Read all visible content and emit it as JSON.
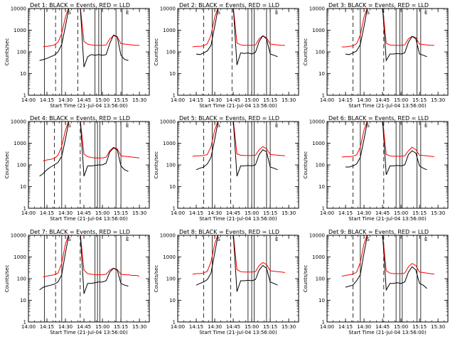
{
  "chart_data": {
    "type": "line",
    "x_tick_labels": [
      "14:00",
      "14:15",
      "14:30",
      "14:45",
      "15:00",
      "15:15",
      "15:30"
    ],
    "x_range": [
      "14:00",
      "15:38"
    ],
    "ylabel": "Counts/sec",
    "y_scale": "log",
    "ylim": [
      1,
      10000
    ],
    "y_tick_labels": [
      "1",
      "10",
      "100",
      "1000",
      "10000"
    ],
    "xlabel": "Start Time (21-Jul-04 13:56:00)",
    "markers": [
      "S",
      "E"
    ],
    "grid": false,
    "colors": {
      "events": "#000000",
      "lld": "#ff0000",
      "axes": "#000000"
    },
    "time_axis": [
      "14:09",
      "14:12",
      "14:15",
      "14:18",
      "14:21",
      "14:24",
      "14:27",
      "14:30",
      "14:33",
      "14:36",
      "14:39",
      "14:42",
      "14:45",
      "14:48",
      "14:51",
      "14:54",
      "14:57",
      "15:00",
      "15:03",
      "15:06",
      "15:09",
      "15:12",
      "15:15",
      "15:18",
      "15:21",
      "15:24",
      "15:27",
      "15:30",
      "15:33"
    ],
    "panels": [
      {
        "title": "Det 1: BLACK = Events, RED = LLD",
        "vlines_solid": [
          "14:13",
          "14:27",
          "14:54",
          "14:57",
          "14:59",
          "15:11",
          "15:16"
        ],
        "vlines_dashed": [
          "14:22",
          "14:40"
        ],
        "series": [
          {
            "name": "Events",
            "values": [
              null,
              null,
              null,
              null,
              null,
              null,
              null,
              null,
              null,
              null,
              null,
              null,
              null,
              null,
              null,
              null,
              null,
              null,
              null,
              null,
              null,
              null,
              null,
              null,
              null,
              null,
              null,
              null,
              null
            ]
          },
          {
            "name": "LLD",
            "values": [
              null,
              null,
              null,
              null,
              null,
              null,
              null,
              null,
              null,
              null,
              null,
              null,
              null,
              null,
              null,
              null,
              null,
              null,
              null,
              null,
              null,
              null,
              null,
              null,
              null,
              null,
              null,
              null,
              null
            ]
          }
        ],
        "events_values": [
          40,
          44,
          50,
          60,
          70,
          100,
          220,
          1500,
          12000,
          12000,
          12000,
          12000,
          20,
          60,
          75,
          70,
          75,
          70,
          75,
          250,
          600,
          500,
          70,
          45,
          40,
          null,
          null,
          null,
          null
        ],
        "lld_values": [
          null,
          175,
          180,
          190,
          210,
          280,
          700,
          4000,
          12000,
          12000,
          12000,
          12000,
          300,
          230,
          210,
          200,
          200,
          200,
          210,
          400,
          550,
          500,
          240,
          230,
          220,
          210,
          200,
          200,
          null
        ]
      },
      {
        "title": "Det 2: BLACK = Events, RED = LLD",
        "vlines_solid": [
          "14:28",
          "14:57",
          "15:00",
          "15:02",
          "15:12",
          "15:15"
        ],
        "vlines_dashed": [
          "14:21",
          "14:44"
        ],
        "events_values": [
          null,
          null,
          80,
          75,
          90,
          110,
          200,
          1500,
          12000,
          12000,
          12000,
          12000,
          12000,
          25,
          90,
          85,
          90,
          80,
          95,
          300,
          550,
          400,
          80,
          70,
          60,
          null,
          null,
          null,
          null
        ],
        "lld_values": [
          null,
          170,
          180,
          180,
          190,
          240,
          600,
          4000,
          12000,
          12000,
          12000,
          12000,
          12000,
          260,
          210,
          200,
          200,
          200,
          210,
          400,
          550,
          450,
          230,
          220,
          210,
          200,
          200,
          null,
          null
        ]
      },
      {
        "title": "Det 3: BLACK = Events, RED = LLD",
        "vlines_solid": [
          "14:27",
          "14:56",
          "14:59",
          "15:01",
          "15:13",
          "15:16"
        ],
        "vlines_dashed": [
          "14:21",
          "14:46"
        ],
        "events_values": [
          null,
          null,
          80,
          75,
          90,
          110,
          220,
          1500,
          12000,
          12000,
          12000,
          12000,
          12000,
          40,
          80,
          80,
          85,
          80,
          90,
          280,
          520,
          400,
          80,
          70,
          60,
          null,
          null,
          null,
          null
        ],
        "lld_values": [
          null,
          170,
          170,
          180,
          190,
          240,
          600,
          4000,
          12000,
          12000,
          12000,
          12000,
          12000,
          250,
          210,
          200,
          200,
          200,
          210,
          400,
          520,
          460,
          230,
          220,
          210,
          200,
          200,
          null,
          null
        ]
      },
      {
        "title": "Det 4: BLACK = Events, RED = LLD",
        "vlines_solid": [
          "14:13",
          "14:27",
          "14:54",
          "14:56",
          "14:58",
          "15:11",
          "15:15"
        ],
        "vlines_dashed": [
          "14:21",
          "14:42"
        ],
        "events_values": [
          30,
          40,
          60,
          80,
          100,
          130,
          250,
          1500,
          12000,
          12000,
          12000,
          12000,
          30,
          90,
          90,
          95,
          100,
          100,
          120,
          400,
          600,
          500,
          90,
          60,
          50,
          null,
          null,
          null,
          null
        ],
        "lld_values": [
          null,
          150,
          170,
          180,
          200,
          280,
          700,
          4000,
          12000,
          12000,
          12000,
          12000,
          320,
          240,
          220,
          210,
          210,
          210,
          230,
          450,
          650,
          550,
          260,
          250,
          240,
          230,
          220,
          210,
          null
        ]
      },
      {
        "title": "Det 5: BLACK = Events, RED = LLD",
        "vlines_solid": [
          "14:28",
          "14:57",
          "15:00",
          "15:02",
          "15:12",
          "15:15"
        ],
        "vlines_dashed": [
          "14:21",
          "14:43"
        ],
        "events_values": [
          null,
          null,
          60,
          70,
          80,
          110,
          220,
          1500,
          12000,
          12000,
          12000,
          12000,
          12000,
          30,
          90,
          90,
          95,
          90,
          100,
          300,
          500,
          400,
          80,
          70,
          60,
          null,
          null,
          null,
          null
        ],
        "lld_values": [
          null,
          250,
          260,
          260,
          270,
          300,
          700,
          4000,
          12000,
          12000,
          12000,
          12000,
          12000,
          320,
          280,
          270,
          270,
          270,
          280,
          500,
          700,
          550,
          300,
          290,
          280,
          270,
          260,
          null,
          null
        ]
      },
      {
        "title": "Det 6: BLACK = Events, RED = LLD",
        "vlines_solid": [
          "14:27",
          "14:56",
          "14:59",
          "15:01",
          "15:13",
          "15:16"
        ],
        "vlines_dashed": [
          "14:21",
          "14:46"
        ],
        "events_values": [
          null,
          null,
          80,
          80,
          90,
          110,
          220,
          1500,
          12000,
          12000,
          12000,
          12000,
          12000,
          35,
          90,
          90,
          95,
          90,
          100,
          300,
          450,
          350,
          90,
          70,
          60,
          null,
          null,
          null,
          null
        ],
        "lld_values": [
          null,
          230,
          240,
          240,
          250,
          290,
          650,
          4000,
          12000,
          12000,
          12000,
          12000,
          12000,
          300,
          260,
          250,
          250,
          250,
          260,
          450,
          650,
          500,
          280,
          270,
          260,
          250,
          240,
          null,
          null
        ]
      },
      {
        "title": "Det 7: BLACK = Events, RED = LLD",
        "vlines_solid": [
          "14:13",
          "14:27",
          "14:54",
          "14:56",
          "14:58",
          "15:11",
          "15:15"
        ],
        "vlines_dashed": [
          "14:22",
          "14:42"
        ],
        "events_values": [
          30,
          40,
          45,
          50,
          55,
          70,
          150,
          1500,
          12000,
          12000,
          12000,
          12000,
          20,
          60,
          60,
          65,
          70,
          70,
          80,
          200,
          300,
          250,
          60,
          50,
          45,
          null,
          null,
          null,
          null
        ],
        "lld_values": [
          null,
          120,
          130,
          140,
          150,
          180,
          500,
          4000,
          12000,
          12000,
          12000,
          12000,
          250,
          170,
          160,
          150,
          150,
          150,
          160,
          250,
          300,
          260,
          160,
          150,
          150,
          140,
          140,
          130,
          null
        ]
      },
      {
        "title": "Det 8: BLACK = Events, RED = LLD",
        "vlines_solid": [
          "14:28",
          "14:57",
          "15:00",
          "15:02",
          "15:12",
          "15:15"
        ],
        "vlines_dashed": [
          "14:21",
          "14:43"
        ],
        "events_values": [
          null,
          null,
          50,
          60,
          70,
          90,
          180,
          1500,
          12000,
          12000,
          12000,
          12000,
          12000,
          25,
          80,
          80,
          85,
          80,
          90,
          250,
          400,
          300,
          70,
          60,
          50,
          null,
          null,
          null,
          null
        ],
        "lld_values": [
          null,
          160,
          170,
          170,
          180,
          220,
          600,
          4000,
          12000,
          12000,
          12000,
          12000,
          12000,
          260,
          210,
          200,
          200,
          200,
          210,
          400,
          550,
          450,
          230,
          220,
          210,
          200,
          190,
          null,
          null
        ]
      },
      {
        "title": "Det 9: BLACK = Events, RED = LLD",
        "vlines_solid": [
          "14:27",
          "14:56",
          "14:59",
          "15:01",
          "15:13",
          "15:16"
        ],
        "vlines_dashed": [
          "14:21",
          "14:46"
        ],
        "events_values": [
          null,
          null,
          40,
          45,
          50,
          80,
          150,
          1500,
          12000,
          12000,
          12000,
          12000,
          12000,
          30,
          60,
          60,
          65,
          60,
          70,
          200,
          350,
          250,
          60,
          50,
          35,
          null,
          null,
          null,
          null
        ],
        "lld_values": [
          null,
          130,
          140,
          150,
          160,
          200,
          550,
          4000,
          12000,
          12000,
          12000,
          12000,
          12000,
          230,
          180,
          170,
          170,
          170,
          180,
          350,
          500,
          400,
          200,
          190,
          180,
          170,
          160,
          null,
          null
        ]
      }
    ]
  }
}
